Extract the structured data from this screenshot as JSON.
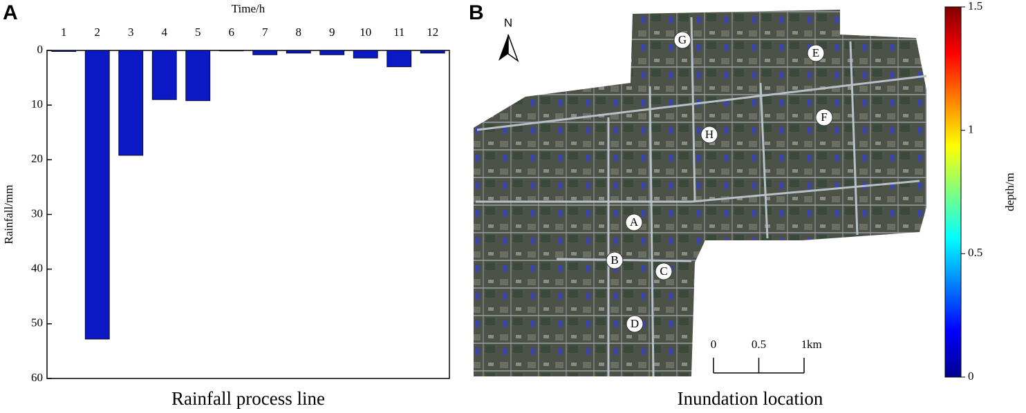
{
  "chart_data": [
    {
      "type": "bar",
      "panel_label": "A",
      "title": "Rainfall process line",
      "x_label": "Time/h",
      "y_label": "Rainfall/mm",
      "categories": [
        "1",
        "2",
        "3",
        "4",
        "5",
        "6",
        "7",
        "8",
        "9",
        "10",
        "11",
        "12"
      ],
      "values": [
        0.2,
        52.8,
        19.2,
        9.0,
        9.2,
        0.1,
        0.8,
        0.5,
        0.8,
        1.4,
        3.0,
        0.5
      ],
      "color": "#0b19c4",
      "ylim": [
        0,
        60
      ],
      "yticks": [
        0,
        10,
        20,
        30,
        40,
        50,
        60
      ],
      "y_inverted": true,
      "x_axis_top": true
    },
    {
      "type": "map",
      "panel_label": "B",
      "title": "Inundation location",
      "north": "N",
      "locations": [
        "G",
        "E",
        "F",
        "H",
        "A",
        "B",
        "C",
        "D"
      ],
      "scale_lim": [
        0,
        1
      ],
      "scale_ticks": [
        0,
        0.5,
        1
      ],
      "scale_unit": "km",
      "colorbar_label": "depth/m",
      "colorbar_lim": [
        0,
        1.5
      ],
      "colorbar_ticks": [
        0,
        0.5,
        1,
        1.5
      ]
    }
  ]
}
